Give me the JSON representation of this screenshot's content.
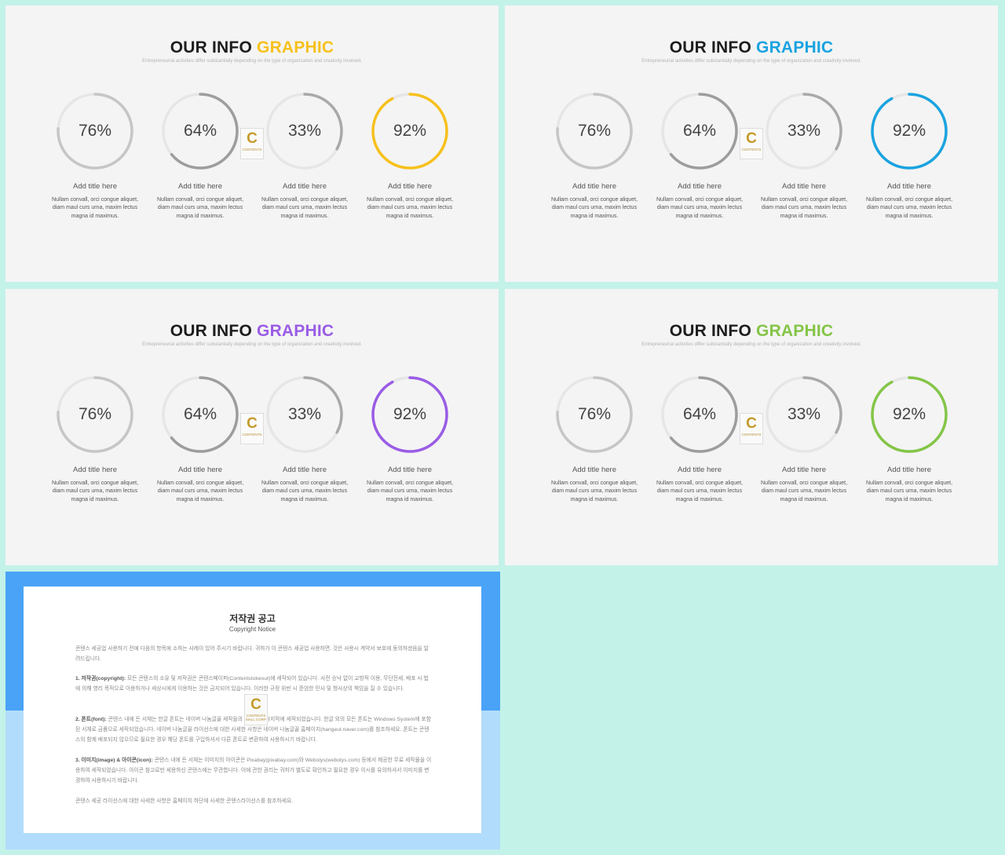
{
  "slides": [
    {
      "title_main": "OUR INFO",
      "title_accent": "GRAPHIC",
      "accent_color": "#f7c11c",
      "subtitle": "Entrepreneurial activities differ substantially depending on the type of organization and creativity involved.",
      "items": [
        {
          "percent": "76%",
          "value": 0.76,
          "title": "Add title here",
          "body": "Nullam convall, orci congue aliquet, diam maul curs urna, maxim lectus magna id maximus."
        },
        {
          "percent": "64%",
          "value": 0.64,
          "title": "Add title here",
          "body": "Nullam convall, orci congue aliquet, diam maul curs urna, maxim lectus magna id maximus."
        },
        {
          "percent": "33%",
          "value": 0.33,
          "title": "Add title here",
          "body": "Nullam convall, orci congue aliquet, diam maul curs urna, maxim lectus magna id maximus."
        },
        {
          "percent": "92%",
          "value": 0.92,
          "title": "Add title here",
          "body": "Nullam convall, orci congue aliquet, diam maul curs urna, maxim lectus magna id maximus."
        }
      ]
    },
    {
      "title_main": "OUR INFO",
      "title_accent": "GRAPHIC",
      "accent_color": "#1aa3e0",
      "subtitle": "Entrepreneurial activities differ substantially depending on the type of organization and creativity involved.",
      "items": [
        {
          "percent": "76%",
          "value": 0.76,
          "title": "Add title here",
          "body": "Nullam convall, orci congue aliquet, diam maul curs urna, maxim lectus magna id maximus."
        },
        {
          "percent": "64%",
          "value": 0.64,
          "title": "Add title here",
          "body": "Nullam convall, orci congue aliquet, diam maul curs urna, maxim lectus magna id maximus."
        },
        {
          "percent": "33%",
          "value": 0.33,
          "title": "Add title here",
          "body": "Nullam convall, orci congue aliquet, diam maul curs urna, maxim lectus magna id maximus."
        },
        {
          "percent": "92%",
          "value": 0.92,
          "title": "Add title here",
          "body": "Nullam convall, orci congue aliquet, diam maul curs urna, maxim lectus magna id maximus."
        }
      ]
    },
    {
      "title_main": "OUR INFO",
      "title_accent": "GRAPHIC",
      "accent_color": "#9a5ce6",
      "subtitle": "Entrepreneurial activities differ substantially depending on the type of organization and creativity involved.",
      "items": [
        {
          "percent": "76%",
          "value": 0.76,
          "title": "Add title here",
          "body": "Nullam convall, orci congue aliquet, diam maul curs urna, maxim lectus magna id maximus."
        },
        {
          "percent": "64%",
          "value": 0.64,
          "title": "Add title here",
          "body": "Nullam convall, orci congue aliquet, diam maul curs urna, maxim lectus magna id maximus."
        },
        {
          "percent": "33%",
          "value": 0.33,
          "title": "Add title here",
          "body": "Nullam convall, orci congue aliquet, diam maul curs urna, maxim lectus magna id maximus."
        },
        {
          "percent": "92%",
          "value": 0.92,
          "title": "Add title here",
          "body": "Nullam convall, orci congue aliquet, diam maul curs urna, maxim lectus magna id maximus."
        }
      ]
    },
    {
      "title_main": "OUR INFO",
      "title_accent": "GRAPHIC",
      "accent_color": "#84c547",
      "subtitle": "Entrepreneurial activities differ substantially depending on the type of organization and creativity involved.",
      "items": [
        {
          "percent": "76%",
          "value": 0.76,
          "title": "Add title here",
          "body": "Nullam convall, orci congue aliquet, diam maul curs urna, maxim lectus magna id maximus."
        },
        {
          "percent": "64%",
          "value": 0.64,
          "title": "Add title here",
          "body": "Nullam convall, orci congue aliquet, diam maul curs urna, maxim lectus magna id maximus."
        },
        {
          "percent": "33%",
          "value": 0.33,
          "title": "Add title here",
          "body": "Nullam convall, orci congue aliquet, diam maul curs urna, maxim lectus magna id maximus."
        },
        {
          "percent": "92%",
          "value": 0.92,
          "title": "Add title here",
          "body": "Nullam convall, orci congue aliquet, diam maul curs urna, maxim lectus magna id maximus."
        }
      ]
    }
  ],
  "ring_colors": {
    "track": "#e6e6e6",
    "ring_76": "#c6c6c6",
    "ring_64": "#9d9d9d",
    "ring_33": "#a9a9a9"
  },
  "logo": {
    "letter": "C",
    "text": "CONTENTS",
    "subtext": "MALL CORP"
  },
  "copyright": {
    "title": "저작권 공고",
    "subtitle": "Copyright Notice",
    "intro": "콘텐스 세공업 사용하기 전에 다음의 항목에 소하는 사례이 있어 주시기 바랍니다. 귀하가 이 콘텐스 세공업 사용하면, 것은 사용시 계약서 보호에 동의하셨음을 알려드립니다.",
    "p1_head": "1. 저작권(copyright):",
    "p1_body": "모든 콘텐스의 소유 및 저작권은 콘텐스페이퍼(Contentstokeout)에 세작되어 있습니다. 사전 승낙 없이 교방적 이용, 무단전세, 배포 시 법에 의해 영리 목적으로 이용하거나 세상시에게 이용하는 것은 금지되어 있습니다. 이러한 규정 위반 시 준엄한 민사 및 형사상의 책임을 질 수 있습니다.",
    "p2_head": "2. 폰트(font):",
    "p2_body": "콘텐스 내에 든 서체는 한글 폰트는 네이버 나눔글꼴 세작들의 제작물을 마지막에 세작되었습니다. 한글 외의 모든 폰트는 Windows System에 포함된 서체로 금품으로 세작되었습니다. 네이버 나눔글꼴 라이선스에 대한 사세한 사항은 네이버 나눔글꼴 홈페이지(hangeul.naver.com)를 참조하세요. 폰트는 콘텐스의 함께 배포되지 않으므로 필요한 경우 해당 폰트를 구입하셔서 다른 폰트로 변환하여 사용하시기 바랍니다.",
    "p3_head": "3. 이미지(image) & 아이콘(icon):",
    "p3_body": "콘텐스 내에 든 서체는 이미지의 아이콘은 Pixabay(pixabay.com)와 Webolys(webolys.com) 등에서 제공한 무료 세작물을 이용하여 세작되었습니다. 아이콘 참고로만 세용하신 콘텐스에는 무관합니다. 이에 관한 권리는 귀하가 별도로 확인하고 필요한 경우 이시를 유의하셔서 이미지를 변경하여 사용하시기 바랍니다.",
    "footer": "콘텐스 세공 라이선스에 대한 사세한 사항은 홈페이지 하단에 사세한 콘텐스라이선스를 참조하세요."
  }
}
